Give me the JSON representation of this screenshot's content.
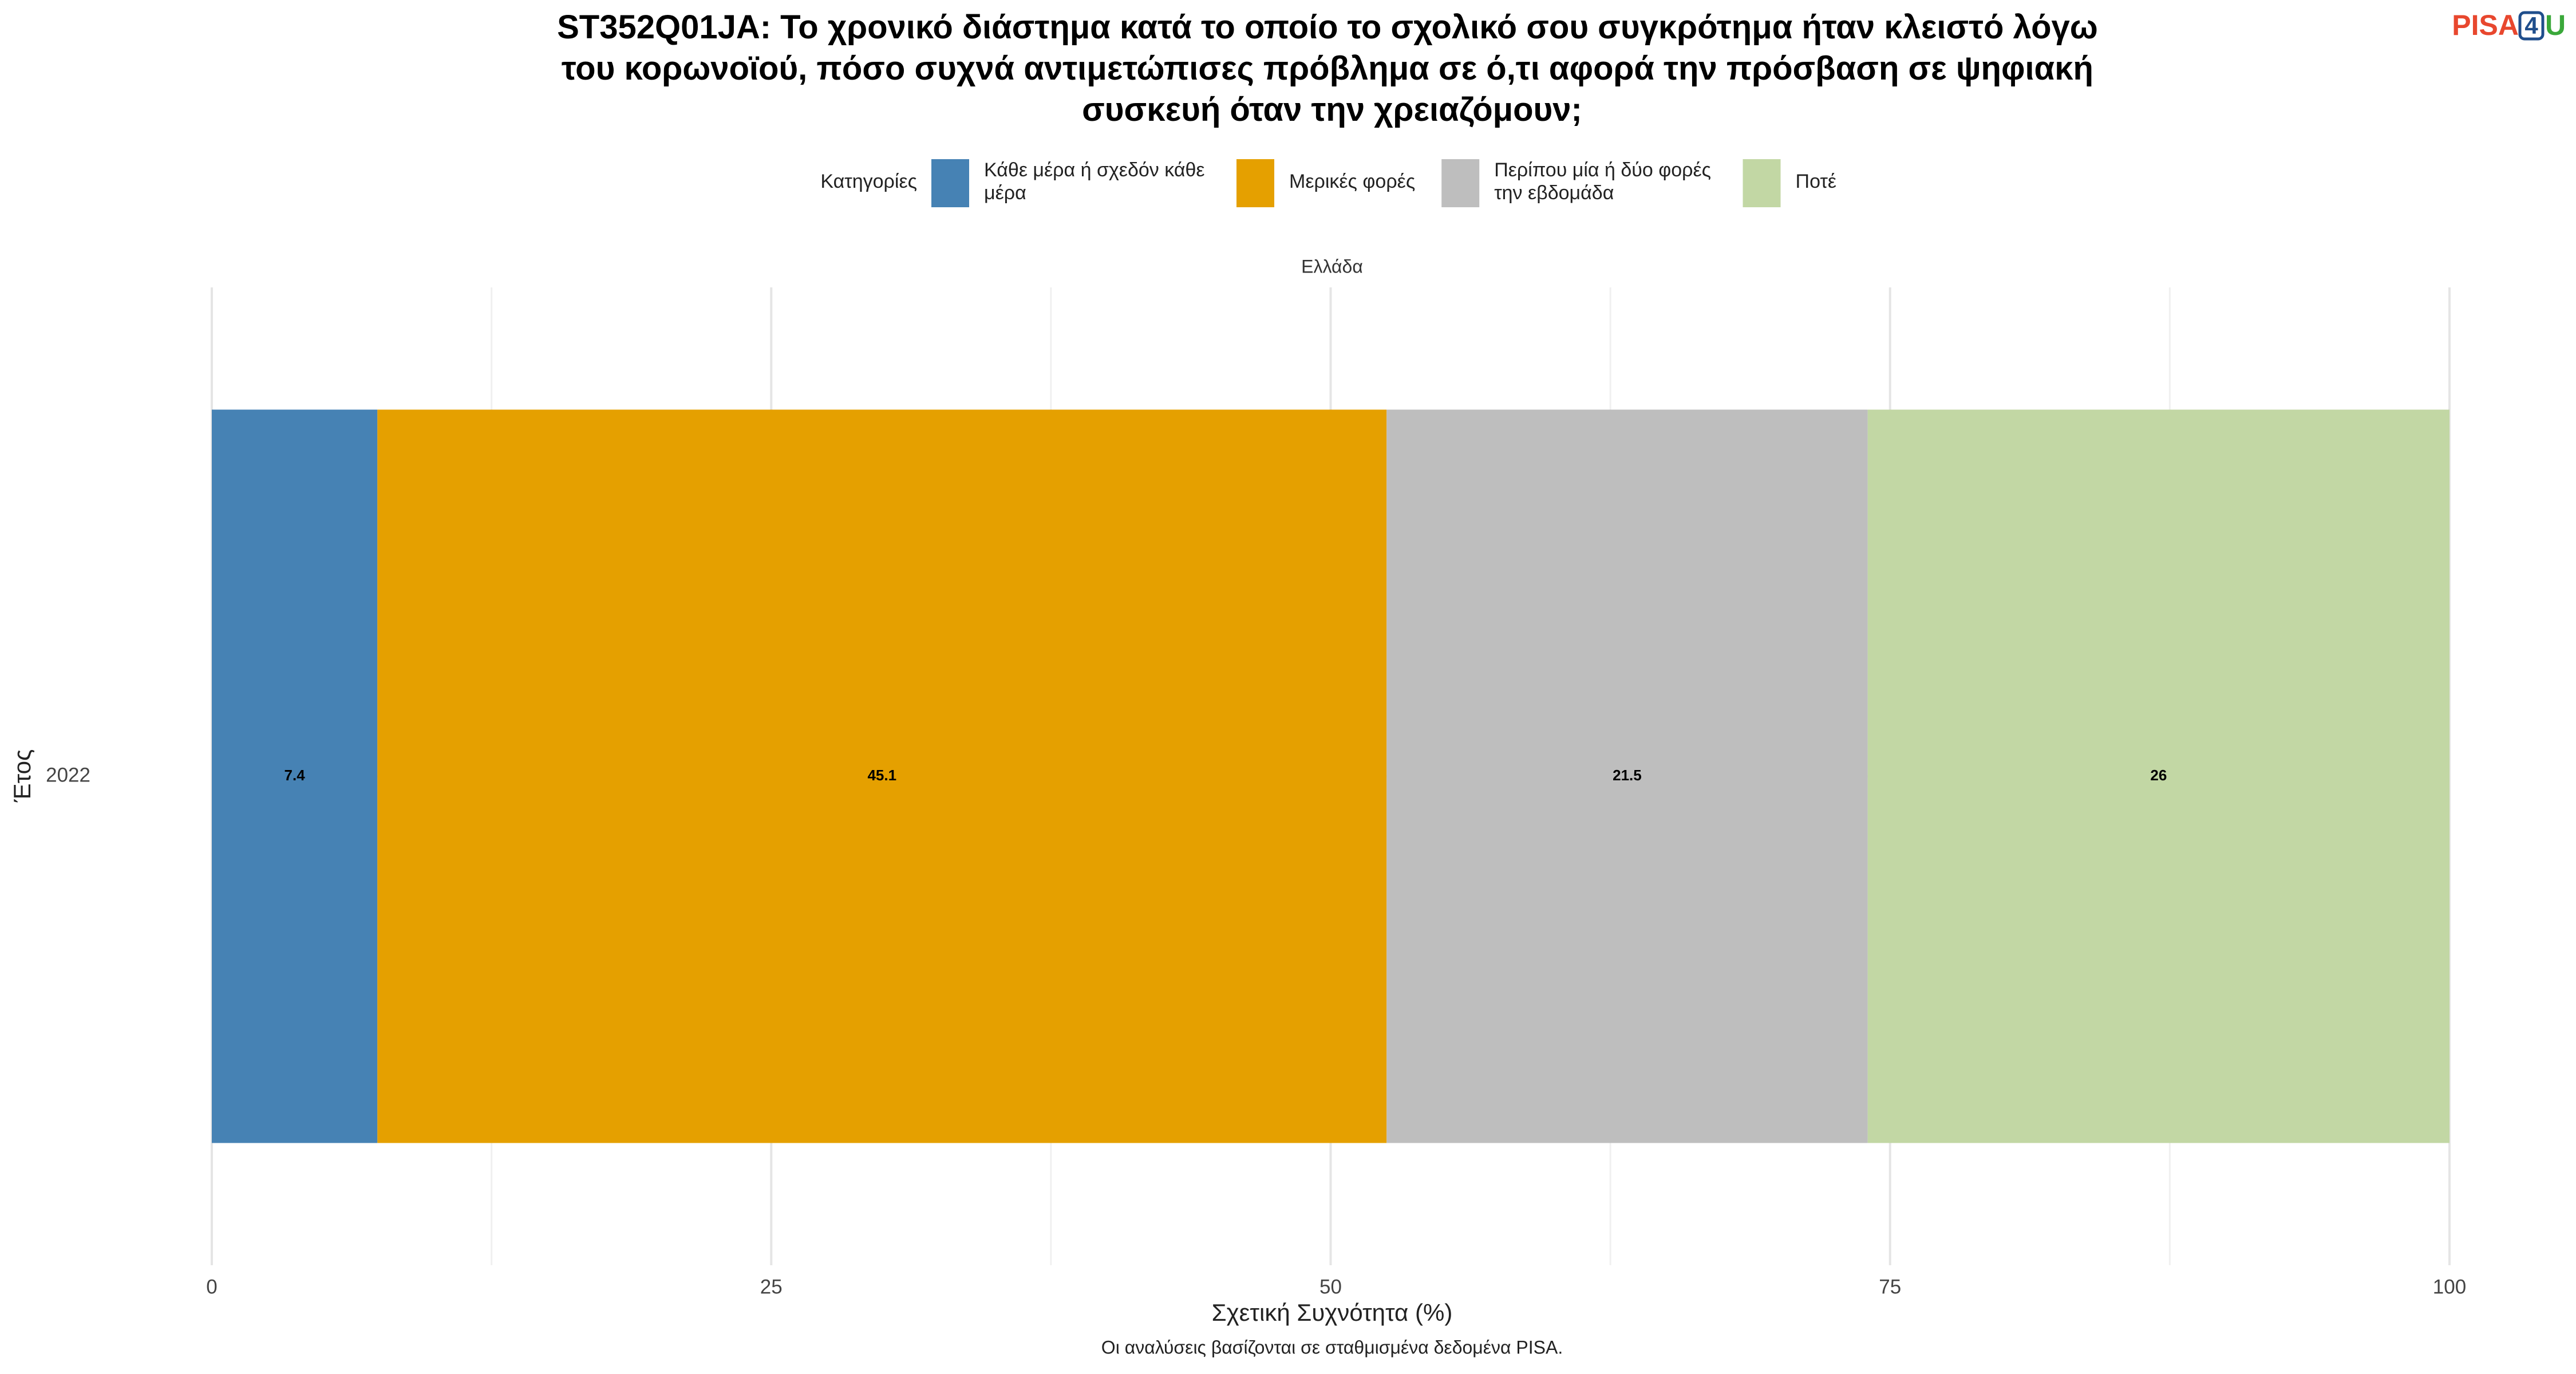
{
  "chart_data": {
    "type": "stacked_bar_horizontal",
    "title": "ST352Q01JA: Το χρονικό διάστημα κατά το οποίο το σχολικό σου συγκρότημα ήταν κλειστό λόγω του κορωνοϊού, πόσο συχνά αντιμετώπισες πρόβλημα σε ό,τι αφορά την πρόσβαση σε ψηφιακή συσκευή όταν την χρειαζόμουν;",
    "legend_title": "Κατηγορίες",
    "facet_label": "Ελλάδα",
    "x_label": "Σχετική Συχνότητα (%)",
    "y_label": "Έτος",
    "caption": "Οι αναλύσεις βασίζονται σε σταθμισμένα δεδομένα PISA.",
    "logo": [
      "PISA",
      "4",
      "U"
    ],
    "categories": [
      "2022"
    ],
    "series": [
      {
        "name": "Κάθε μέρα ή σχεδόν κάθε μέρα",
        "color": "#4682b4",
        "values": [
          7.4
        ]
      },
      {
        "name": "Μερικές φορές",
        "color": "#e5a000",
        "values": [
          45.1
        ]
      },
      {
        "name": "Περίπου μία ή δύο φορές την εβδομάδα",
        "color": "#bebebe",
        "values": [
          21.5
        ]
      },
      {
        "name": "Ποτέ",
        "color": "#c2d7a4",
        "values": [
          26
        ]
      }
    ],
    "xlim": [
      0,
      100
    ],
    "xticks": [
      0,
      25,
      50,
      75,
      100
    ],
    "x_minor_grid": [
      12.5,
      37.5,
      62.5,
      87.5
    ],
    "grid": true,
    "legend_position": "top"
  }
}
